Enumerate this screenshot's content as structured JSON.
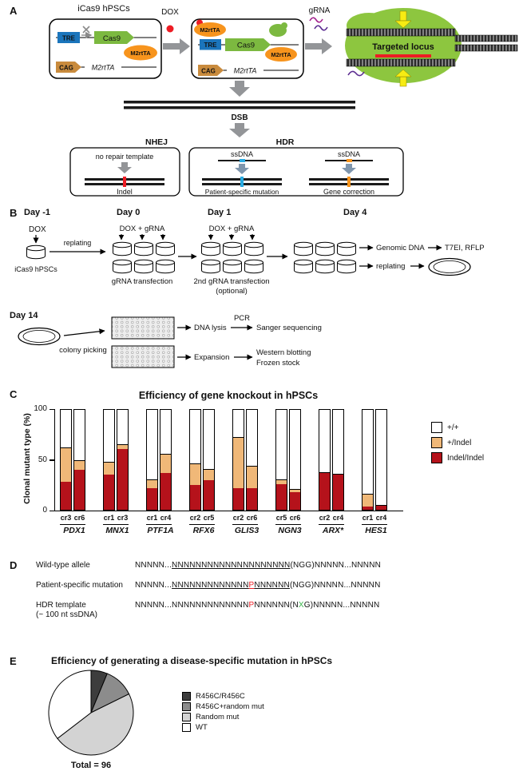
{
  "figure": {
    "panel_a": {
      "label": "A",
      "icas9_title": "iCas9 hPSCs",
      "dox": "DOX",
      "grna": "gRNA",
      "box1": {
        "tre": "TRE",
        "cas9": "Cas9",
        "m2rtta_protein": "M2rtTA",
        "cag": "CAG",
        "m2rtta_gene": "M2rtTA"
      },
      "box2": {
        "tre": "TRE",
        "cas9": "Cas9",
        "m2rtta_protein1": "M2rtTA",
        "m2rtta_protein2": "M2rtTA",
        "cag": "CAG",
        "m2rtta_gene": "M2rtTA"
      },
      "targeted_locus": "Targeted locus",
      "dsb": "DSB",
      "nhej": "NHEJ",
      "hdr": "HDR",
      "no_repair_template": "no repair template",
      "indel": "Indel",
      "ssdna_left": "ssDNA",
      "ssdna_right": "ssDNA",
      "patient_specific_mutation": "Patient-specific mutation",
      "gene_correction": "Gene correction"
    },
    "panel_b": {
      "label": "B",
      "day_minus1": "Day -1",
      "day0": "Day 0",
      "day1": "Day 1",
      "day4": "Day 4",
      "day14": "Day 14",
      "dox": "DOX",
      "icas9_hpscs": "iCas9 hPSCs",
      "replating1": "replating",
      "dox_grna_1": "DOX + gRNA",
      "dox_grna_2": "DOX + gRNA",
      "grna_transfection": "gRNA transfection",
      "second_transfection": "2nd gRNA transfection",
      "optional": "(optional)",
      "genomic_dna": "Genomic DNA",
      "t7ei_rflp": "T7EI, RFLP",
      "replating2": "replating",
      "colony_picking": "colony picking",
      "dna_lysis": "DNA lysis",
      "pcr": "PCR",
      "sanger": "Sanger sequencing",
      "expansion": "Expansion",
      "western": "Western blotting",
      "frozen": "Frozen stock"
    },
    "panel_c": {
      "label": "C"
    },
    "panel_d": {
      "label": "D",
      "rows": [
        {
          "label": [
            "Wild-type allele"
          ],
          "segments": [
            {
              "text": "NNNNN..."
            },
            {
              "text": "NNNNNNNNNNNNNNNNNNNN",
              "underline": true
            },
            {
              "text": "(NGG)NNNNN...NNNNN"
            }
          ]
        },
        {
          "label": [
            "Patient-specific mutation"
          ],
          "segments": [
            {
              "text": "NNNNN..."
            },
            {
              "text": "NNNNNNNNNNNNN",
              "underline": true
            },
            {
              "text": "P",
              "underline": true,
              "color": "#ed1c24"
            },
            {
              "text": "NNNNNN",
              "underline": true
            },
            {
              "text": "(NGG)NNNNN...NNNNN"
            }
          ]
        },
        {
          "label": [
            "HDR template",
            "(~ 100 nt ssDNA)"
          ],
          "segments": [
            {
              "text": "NNNNN...NNNNNNNNNNNNN"
            },
            {
              "text": "P",
              "color": "#ed1c24"
            },
            {
              "text": "NNNNNN(N"
            },
            {
              "text": "X",
              "color": "#39b54a"
            },
            {
              "text": "G)NNNNN...NNNNN"
            }
          ]
        }
      ]
    },
    "panel_e": {
      "label": "E"
    }
  },
  "chart_data": [
    {
      "type": "bar",
      "stacked": true,
      "title": "Efficiency of gene knockout in hPSCs",
      "ylabel": "Clonal mutant type (%)",
      "ylim": [
        0,
        100
      ],
      "yticks": [
        0,
        50,
        100
      ],
      "genes": [
        "PDX1",
        "MNX1",
        "PTF1A",
        "RFX6",
        "GLIS3",
        "NGN3",
        "ARX*",
        "HES1"
      ],
      "categories": [
        "cr3",
        "cr6",
        "cr1",
        "cr3",
        "cr1",
        "cr4",
        "cr2",
        "cr5",
        "cr2",
        "cr6",
        "cr5",
        "cr6",
        "cr2",
        "cr4",
        "cr1",
        "cr4"
      ],
      "series": [
        {
          "name": "Indel/Indel",
          "color": "#b5121b",
          "values": [
            28,
            40,
            35,
            61,
            22,
            37,
            25,
            30,
            22,
            22,
            26,
            18,
            37,
            35,
            3,
            4
          ]
        },
        {
          "name": "+/Indel",
          "color": "#f0b878",
          "values": [
            34,
            9,
            12,
            4,
            8,
            18,
            21,
            10,
            50,
            21,
            4,
            2,
            0,
            0,
            12,
            0
          ]
        },
        {
          "name": "+/+",
          "color": "#ffffff",
          "values": [
            38,
            51,
            53,
            35,
            70,
            45,
            54,
            60,
            28,
            57,
            70,
            80,
            63,
            65,
            85,
            96
          ]
        }
      ],
      "legend": [
        "+/+",
        "+/Indel",
        "Indel/Indel"
      ]
    },
    {
      "type": "pie",
      "title": "Efficiency of generating a disease-specific mutation in hPSCs",
      "total_label": "Total = 96",
      "total": 96,
      "slices": [
        {
          "label": "R456C/R456C",
          "value": 6,
          "color": "#3d3d3d"
        },
        {
          "label": "R456C+random mut",
          "value": 11,
          "color": "#8c8c8c"
        },
        {
          "label": "Random mut",
          "value": 45,
          "color": "#d3d3d3"
        },
        {
          "label": "WT",
          "value": 34,
          "color": "#ffffff"
        }
      ]
    }
  ]
}
